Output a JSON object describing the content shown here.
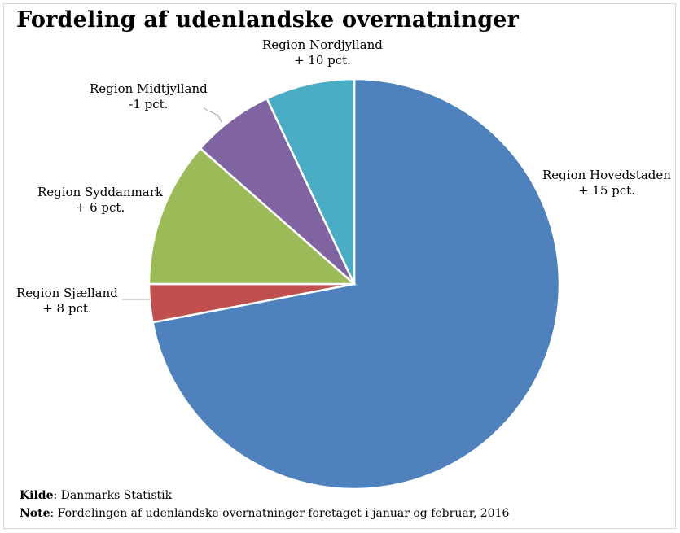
{
  "chart_data": {
    "type": "pie",
    "title": "Fordeling af udenlandske overnatninger",
    "slices": [
      {
        "name": "Region Hovedstaden",
        "change": "+ 15 pct.",
        "value": 72.0,
        "color": "#4f81bd"
      },
      {
        "name": "Region Sjælland",
        "change": "+ 8 pct.",
        "value": 3.0,
        "color": "#c0504d"
      },
      {
        "name": "Region Syddanmark",
        "change": "+ 6 pct.",
        "value": 11.5,
        "color": "#9bbb59"
      },
      {
        "name": "Region Midtjylland",
        "change": "-1 pct.",
        "value": 6.5,
        "color": "#8064a2"
      },
      {
        "name": "Region Nordjylland",
        "change": "+ 10 pct.",
        "value": 7.0,
        "color": "#4bacc6"
      }
    ],
    "legend": "none"
  },
  "footer": {
    "source_label": "Kilde",
    "source_text": ": Danmarks Statistik",
    "note_label": "Note",
    "note_text": ": Fordelingen af udenlandske overnatninger foretaget i januar og februar, 2016"
  }
}
